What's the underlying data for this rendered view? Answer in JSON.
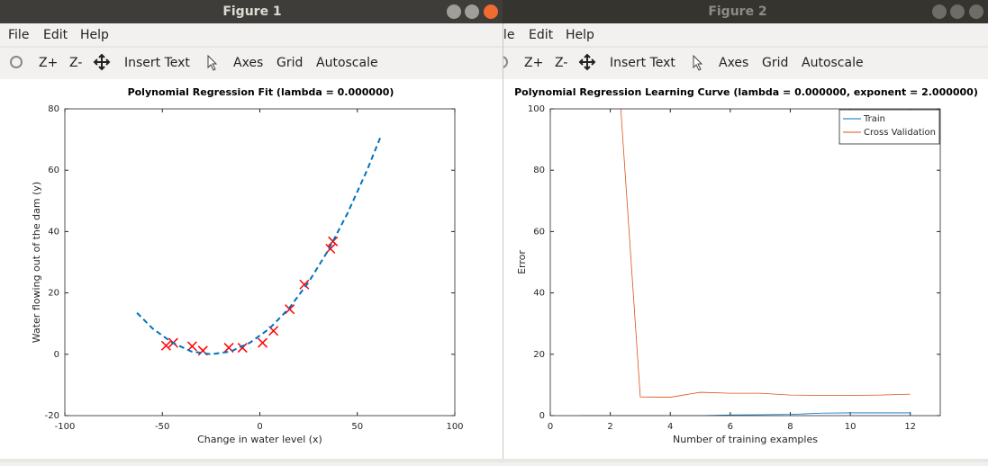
{
  "windows": [
    {
      "title": "Figure 1",
      "menu": [
        "File",
        "Edit",
        "Help"
      ],
      "toolbar": [
        "Z+",
        "Z-",
        "Insert Text",
        "Axes",
        "Grid",
        "Autoscale"
      ]
    },
    {
      "title": "Figure 2",
      "menu": [
        "File",
        "Edit",
        "Help"
      ],
      "toolbar": [
        "Z+",
        "Z-",
        "Insert Text",
        "Axes",
        "Grid",
        "Autoscale"
      ]
    }
  ],
  "chart_data": [
    {
      "type": "scatter",
      "title": "Polynomial Regression Fit (lambda = 0.000000)",
      "x_label": "Change in water level (x)",
      "y_label": "Water flowing out of the dam (y)",
      "xlim": [
        -100,
        100
      ],
      "xticks": [
        -100,
        -50,
        0,
        50,
        100
      ],
      "ylim": [
        -20,
        80
      ],
      "yticks": [
        -20,
        0,
        20,
        40,
        60,
        80
      ],
      "series": [
        {
          "color": "#ff0000",
          "marker": "x",
          "x": [
            -15.9,
            -29.2,
            36.2,
            37.5,
            -48.1,
            -8.9,
            15.3,
            -34.7,
            1.4,
            -44.4,
            7.0,
            22.8
          ],
          "values": [
            2.13,
            1.17,
            34.4,
            36.8,
            2.81,
            2.12,
            14.7,
            2.61,
            3.74,
            3.73,
            7.63,
            22.75
          ]
        },
        {
          "color": "#0072bd",
          "line": "dashed",
          "x": [
            -63,
            -55,
            -45,
            -35,
            -25,
            -15,
            -5,
            5,
            15,
            25,
            35,
            45,
            55,
            62
          ],
          "values": [
            13.5,
            8.4,
            3.8,
            0.9,
            0,
            0.9,
            3.8,
            8.4,
            15.0,
            23.5,
            33.8,
            46.0,
            60.0,
            71.0
          ]
        }
      ]
    },
    {
      "type": "line",
      "title": "Polynomial Regression Learning Curve (lambda = 0.000000, exponent = 2.000000)",
      "x_label": "Number of training examples",
      "y_label": "Error",
      "xlim": [
        0,
        13
      ],
      "xticks": [
        0,
        2,
        4,
        6,
        8,
        10,
        12
      ],
      "ylim": [
        0,
        100
      ],
      "yticks": [
        0,
        20,
        40,
        60,
        80,
        100
      ],
      "legend": "northeast",
      "x": [
        1,
        2,
        3,
        4,
        5,
        6,
        7,
        8,
        9,
        10,
        11,
        12
      ],
      "series": [
        {
          "name": "Train",
          "color": "#0072bd",
          "values": [
            0,
            0,
            0,
            0,
            0,
            0.2,
            0.3,
            0.4,
            0.8,
            0.9,
            0.9,
            0.9
          ]
        },
        {
          "name": "Cross Validation",
          "color": "#d95319",
          "values": [
            null,
            150.6,
            6.1,
            6.0,
            7.6,
            7.3,
            7.3,
            6.7,
            6.6,
            6.6,
            6.7,
            7.0
          ]
        }
      ]
    }
  ]
}
